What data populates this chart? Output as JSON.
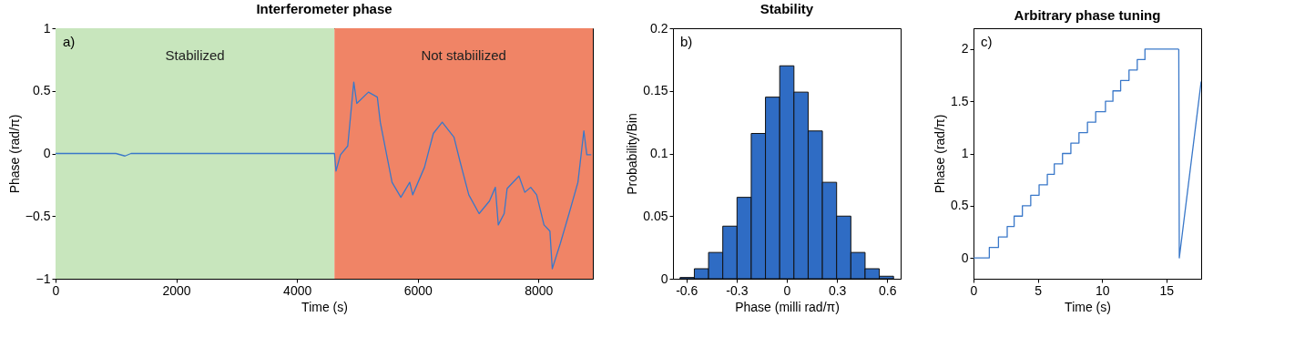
{
  "chart_data": [
    {
      "type": "line",
      "title": "Interferometer phase",
      "xlabel": "Time (s)",
      "ylabel": "Phase (rad/π)",
      "xlim": [
        0,
        8900
      ],
      "ylim": [
        -1,
        1
      ],
      "xticks": [
        0,
        2000,
        4000,
        6000,
        8000
      ],
      "yticks": [
        {
          "value": -1,
          "label": "−1"
        },
        {
          "value": -0.5,
          "label": "−0.5"
        },
        0,
        0.5,
        1
      ],
      "bands": [
        {
          "axis": "x",
          "from": 0,
          "to": 4620,
          "label": "Stabilized",
          "color": "#c8e6bd"
        },
        {
          "axis": "x",
          "from": 4620,
          "to": 8900,
          "label": "Not stabiilized",
          "color": "#f08466"
        }
      ],
      "annotations": [
        "a)"
      ],
      "series": [
        {
          "color": "#3a78c9",
          "x": [
            0,
            500,
            1000,
            1150,
            1250,
            2000,
            3000,
            4000,
            4620,
            4645,
            4720,
            4840,
            4940,
            4990,
            5183,
            5330,
            5379,
            5574,
            5720,
            5867,
            5916,
            6111,
            6258,
            6405,
            6600,
            6698,
            6845,
            7016,
            7187,
            7285,
            7334,
            7431,
            7480,
            7676,
            7773,
            7871,
            7969,
            8091,
            8189,
            8228,
            8360,
            8506,
            8653,
            8751,
            8800,
            8873
          ],
          "values": [
            0,
            0,
            0,
            -0.02,
            0,
            0,
            0,
            0,
            0,
            -0.14,
            -0.01,
            0.06,
            0.57,
            0.4,
            0.49,
            0.45,
            0.25,
            -0.23,
            -0.35,
            -0.23,
            -0.33,
            -0.11,
            0.16,
            0.25,
            0.13,
            -0.06,
            -0.33,
            -0.48,
            -0.38,
            -0.27,
            -0.57,
            -0.48,
            -0.28,
            -0.18,
            -0.31,
            -0.27,
            -0.33,
            -0.57,
            -0.62,
            -0.92,
            -0.72,
            -0.48,
            -0.23,
            0.18,
            -0.01,
            -0.01
          ]
        }
      ]
    },
    {
      "type": "histogram",
      "title": "Stability",
      "xlabel": "Phase (milli rad/π)",
      "ylabel": "Probability/Bin",
      "xlim": [
        -0.68,
        0.68
      ],
      "ylim": [
        0,
        0.2
      ],
      "xticks": [
        -0.6,
        -0.3,
        0,
        0.3,
        0.6
      ],
      "yticks": [
        0,
        0.05,
        0.1,
        0.15,
        0.2
      ],
      "color": "#2f6cc4",
      "annotations": [
        "b)"
      ],
      "bins": [
        -0.6375,
        -0.5525,
        -0.4675,
        -0.3825,
        -0.2975,
        -0.2125,
        -0.1275,
        -0.0425,
        0.0425,
        0.1275,
        0.2125,
        0.2975,
        0.3825,
        0.4675,
        0.5525,
        0.6375
      ],
      "values": [
        0.001,
        0.008,
        0.021,
        0.042,
        0.065,
        0.116,
        0.145,
        0.17,
        0.149,
        0.118,
        0.077,
        0.05,
        0.021,
        0.008,
        0.002
      ]
    },
    {
      "type": "line",
      "title": "Arbitrary phase tuning",
      "xlabel": "Time (s)",
      "ylabel": "Phase (rad/π)",
      "xlim": [
        0,
        17.7
      ],
      "ylim": [
        -0.2,
        2.2
      ],
      "xticks": [
        0,
        5,
        10,
        15
      ],
      "yticks": [
        0,
        0.5,
        1,
        1.5,
        2
      ],
      "annotations": [
        "c)"
      ],
      "series": [
        {
          "type": "step",
          "color": "#3a78c9",
          "x": [
            0,
            1.23,
            1.94,
            2.62,
            3.16,
            3.8,
            4.45,
            5.1,
            5.74,
            6.28,
            6.92,
            7.57,
            8.2,
            8.86,
            9.5,
            10.26,
            10.84,
            11.44,
            12.09,
            12.73,
            13.33,
            15.96
          ],
          "values": [
            0,
            0.1,
            0.2,
            0.3,
            0.4,
            0.5,
            0.6,
            0.7,
            0.8,
            0.9,
            1.0,
            1.1,
            1.2,
            1.3,
            1.4,
            1.5,
            1.6,
            1.7,
            1.8,
            1.9,
            2.0,
            2.0
          ]
        },
        {
          "type": "line",
          "color": "#3a78c9",
          "x": [
            15.96,
            16.0,
            17.7
          ],
          "values": [
            2.0,
            0,
            1.69
          ]
        }
      ]
    }
  ]
}
